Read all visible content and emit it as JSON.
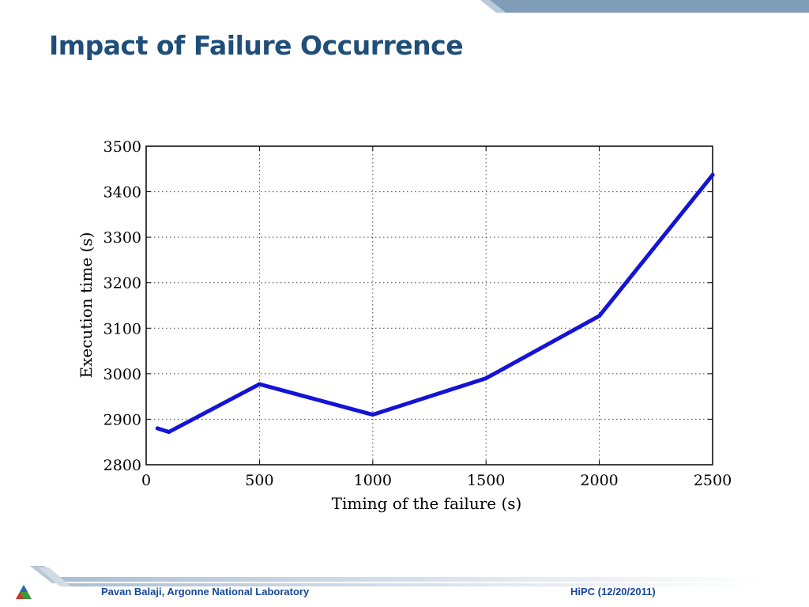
{
  "slide": {
    "title": "Impact of Failure Occurrence",
    "footer_left": "Pavan Balaji, Argonne National Laboratory",
    "footer_right": "HiPC (12/20/2011)"
  },
  "colors": {
    "title": "#1f4e79",
    "series": "#1414d6",
    "band": "#7f9db9",
    "footer_text": "#16479a"
  },
  "chart_data": {
    "type": "line",
    "title": "",
    "xlabel": "Timing of the failure (s)",
    "ylabel": "Execution time (s)",
    "xlim": [
      0,
      2500
    ],
    "ylim": [
      2800,
      3500
    ],
    "xticks": [
      0,
      500,
      1000,
      1500,
      2000,
      2500
    ],
    "yticks": [
      2800,
      2900,
      3000,
      3100,
      3200,
      3300,
      3400,
      3500
    ],
    "grid": true,
    "legend": "none",
    "series": [
      {
        "x": [
          50,
          100,
          500,
          1000,
          1500,
          2000,
          2500
        ],
        "y": [
          2880,
          2872,
          2977,
          2910,
          2990,
          3127,
          3437
        ]
      }
    ]
  }
}
